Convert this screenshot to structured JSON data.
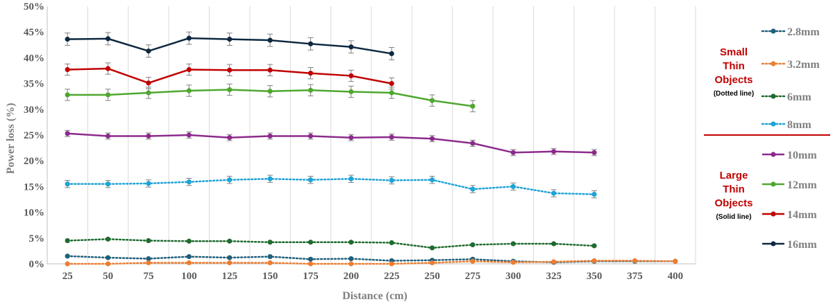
{
  "chart_data": {
    "type": "line",
    "title": "",
    "xlabel": "Distance (cm)",
    "ylabel": "Power loss (%)",
    "categories": [
      "25",
      "50",
      "75",
      "100",
      "125",
      "150",
      "175",
      "200",
      "225",
      "250",
      "275",
      "300",
      "325",
      "350",
      "375",
      "400"
    ],
    "ylim": [
      0,
      50
    ],
    "yticks": [
      "0%",
      "5%",
      "10%",
      "15%",
      "20%",
      "25%",
      "30%",
      "35%",
      "40%",
      "45%",
      "50%"
    ],
    "grid": "vertical",
    "legend_position": "right",
    "series": [
      {
        "name": "2.8mm",
        "color": "#1f5f7a",
        "style": "dotted",
        "values": [
          1.5,
          1.2,
          1.0,
          1.4,
          1.2,
          1.4,
          0.9,
          1.0,
          0.6,
          0.7,
          0.9,
          0.5,
          0.3,
          0.5,
          0.5,
          0.5
        ],
        "errors": [
          0,
          0,
          0,
          0,
          0,
          0,
          0,
          0,
          0,
          0,
          0,
          0,
          0,
          0,
          0,
          0
        ]
      },
      {
        "name": "3.2mm",
        "color": "#ed7d31",
        "style": "dotted",
        "values": [
          0.0,
          0.0,
          0.2,
          0.2,
          0.2,
          0.2,
          0.0,
          0.0,
          0.0,
          0.2,
          0.5,
          0.3,
          0.4,
          0.6,
          0.6,
          0.5
        ],
        "errors": [
          0,
          0,
          0,
          0,
          0,
          0,
          0,
          0,
          0,
          0,
          0,
          0,
          0,
          0,
          0,
          0
        ]
      },
      {
        "name": "6mm",
        "color": "#1e6b2e",
        "style": "dotted",
        "values": [
          4.5,
          4.8,
          4.5,
          4.4,
          4.4,
          4.2,
          4.2,
          4.2,
          4.1,
          3.1,
          3.7,
          3.9,
          3.9,
          3.5,
          null,
          null
        ],
        "errors": [
          0,
          0,
          0,
          0,
          0,
          0,
          0,
          0,
          0,
          0,
          0,
          0,
          0,
          0,
          0,
          0
        ]
      },
      {
        "name": "8mm",
        "color": "#1ea3d6",
        "style": "dotted",
        "values": [
          15.5,
          15.5,
          15.6,
          15.9,
          16.3,
          16.5,
          16.3,
          16.5,
          16.2,
          16.3,
          14.5,
          15.0,
          13.7,
          13.5,
          null,
          null
        ],
        "errors": [
          0.7,
          0.7,
          0.7,
          0.7,
          0.7,
          0.7,
          0.7,
          0.7,
          0.7,
          0.7,
          0.7,
          0.7,
          0.7,
          0.7,
          0,
          0
        ]
      },
      {
        "name": "10mm",
        "color": "#8c2a8c",
        "style": "solid",
        "values": [
          25.3,
          24.8,
          24.8,
          25.0,
          24.5,
          24.8,
          24.8,
          24.5,
          24.6,
          24.3,
          23.4,
          21.6,
          21.8,
          21.6,
          null,
          null
        ],
        "errors": [
          0.6,
          0.6,
          0.6,
          0.6,
          0.6,
          0.6,
          0.6,
          0.6,
          0.6,
          0.6,
          0.6,
          0.6,
          0.6,
          0.6,
          0,
          0
        ]
      },
      {
        "name": "12mm",
        "color": "#4ea72e",
        "style": "solid",
        "values": [
          32.8,
          32.8,
          33.2,
          33.6,
          33.8,
          33.5,
          33.7,
          33.4,
          33.2,
          31.7,
          30.6,
          null,
          null,
          null,
          null,
          null
        ],
        "errors": [
          1.1,
          1.1,
          1.1,
          1.1,
          1.1,
          1.1,
          1.1,
          1.1,
          1.1,
          1.1,
          1.1,
          0,
          0,
          0,
          0,
          0
        ]
      },
      {
        "name": "14mm",
        "color": "#c00000",
        "style": "solid",
        "values": [
          37.7,
          37.9,
          35.1,
          37.7,
          37.6,
          37.6,
          37.0,
          36.5,
          35.0,
          null,
          null,
          null,
          null,
          null,
          null,
          null
        ],
        "errors": [
          1.1,
          1.1,
          1.1,
          1.1,
          1.1,
          1.1,
          1.1,
          1.1,
          1.1,
          0,
          0,
          0,
          0,
          0,
          0,
          0
        ]
      },
      {
        "name": "16mm",
        "color": "#0e2841",
        "style": "solid",
        "values": [
          43.6,
          43.7,
          41.3,
          43.8,
          43.6,
          43.4,
          42.7,
          42.1,
          40.8,
          null,
          null,
          null,
          null,
          null,
          null,
          null
        ],
        "errors": [
          1.2,
          1.2,
          1.2,
          1.2,
          1.2,
          1.2,
          1.2,
          1.2,
          1.2,
          0,
          0,
          0,
          0,
          0,
          0,
          0
        ]
      }
    ],
    "legend_groups": [
      {
        "title_lines": [
          "Small",
          "Thin",
          "Objects"
        ],
        "note": "(Dotted line)"
      },
      {
        "title_lines": [
          "Large",
          "Thin",
          "Objects"
        ],
        "note": "(Solid line)"
      }
    ],
    "separator_color": "#c00000"
  }
}
